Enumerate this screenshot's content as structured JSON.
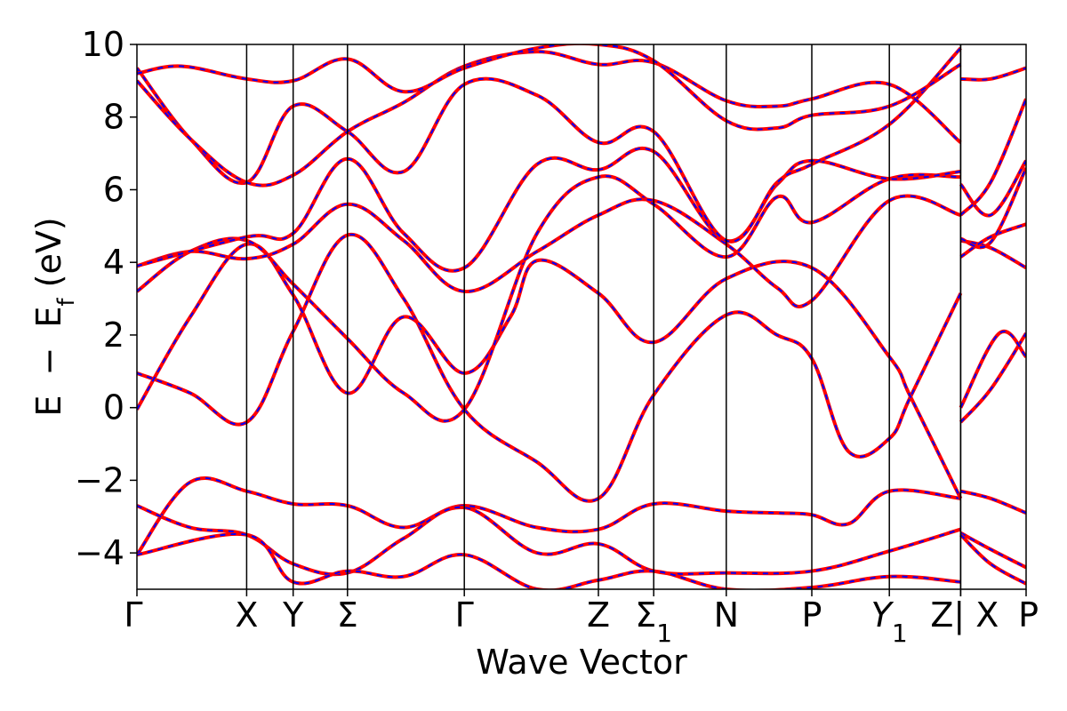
{
  "chart_data": {
    "type": "line",
    "title": "",
    "xlabel": "Wave Vector",
    "ylabel_parts": {
      "e": "E",
      "minus": "−",
      "ef": "E",
      "ef_sub": "f",
      "unit": " (eV)"
    },
    "ylim": [
      -5,
      10
    ],
    "y_ticks": [
      10,
      8,
      6,
      4,
      2,
      0,
      -2,
      -4
    ],
    "y_tick_labels": [
      "10",
      "8",
      "6",
      "4",
      "2",
      "0",
      "−2",
      "−4"
    ],
    "xlim": [
      0,
      1
    ],
    "high_symmetry_points": [
      {
        "label": "Γ",
        "sub": "",
        "x": 0.0
      },
      {
        "label": "X",
        "sub": "",
        "x": 0.1234
      },
      {
        "label": "Y",
        "sub": "",
        "x": 0.1757
      },
      {
        "label": "Σ",
        "sub": "",
        "x": 0.2368
      },
      {
        "label": "Γ",
        "sub": "",
        "x": 0.3682
      },
      {
        "label": "Z",
        "sub": "",
        "x": 0.519
      },
      {
        "label": "Σ",
        "sub": "1",
        "x": 0.5812
      },
      {
        "label": "N",
        "sub": "",
        "x": 0.6628
      },
      {
        "label": "P",
        "sub": "",
        "x": 0.759
      },
      {
        "label": "Y",
        "sub": "1",
        "x": 0.8462
      },
      {
        "label": "Z",
        "sub": "",
        "x": 0.9264
      },
      {
        "label": "| X",
        "sub": "",
        "x": 0.9264
      },
      {
        "label": "P",
        "sub": "",
        "x": 1.0
      }
    ],
    "series_style": {
      "dft_color": "#ff0000",
      "wannier_color": "#0000ff",
      "dft_dash": "solid",
      "wannier_dash": "dashed"
    },
    "bands": [
      {
        "x": [
          0.0,
          0.06,
          0.1234,
          0.1757,
          0.2368,
          0.3,
          0.3682,
          0.45,
          0.519,
          0.5812,
          0.6628,
          0.72,
          0.759,
          0.8,
          0.8462,
          0.9264
        ],
        "y": [
          -4.05,
          -2.05,
          -2.3,
          -2.65,
          -2.7,
          -3.3,
          -2.7,
          -3.3,
          -3.35,
          -2.65,
          -2.85,
          -2.9,
          -2.95,
          -3.2,
          -2.3,
          -2.5
        ]
      },
      {
        "x": [
          0.0,
          0.06,
          0.1234,
          0.1757,
          0.2368,
          0.3,
          0.3682,
          0.45,
          0.519,
          0.5812,
          0.6628,
          0.759,
          0.8462,
          0.9264
        ],
        "y": [
          -2.7,
          -3.3,
          -3.5,
          -4.3,
          -4.55,
          -3.6,
          -2.75,
          -4.0,
          -3.75,
          -4.5,
          -4.55,
          -4.5,
          -3.95,
          -3.35
        ]
      },
      {
        "x": [
          0.0,
          0.1234,
          0.1757,
          0.2368,
          0.3,
          0.3682,
          0.45,
          0.519,
          0.5812,
          0.6628,
          0.759,
          0.8462,
          0.9264
        ],
        "y": [
          -4.05,
          -3.5,
          -4.8,
          -4.5,
          -4.65,
          -4.05,
          -5.0,
          -4.75,
          -4.5,
          -5.0,
          -4.95,
          -4.65,
          -4.8
        ]
      },
      {
        "x": [
          0.0,
          0.06,
          0.1234,
          0.1757,
          0.2368,
          0.3,
          0.3682,
          0.45,
          0.519,
          0.5812,
          0.6628,
          0.72,
          0.759,
          0.8,
          0.8462,
          0.87,
          0.9264
        ],
        "y": [
          0.95,
          0.4,
          -0.4,
          2.1,
          4.75,
          3.0,
          -0.05,
          -1.5,
          -2.5,
          0.35,
          2.55,
          2.0,
          1.35,
          -1.2,
          -0.85,
          0.3,
          3.15
        ]
      },
      {
        "x": [
          0.0,
          0.06,
          0.1234,
          0.1757,
          0.2368,
          0.3,
          0.3682,
          0.42,
          0.45,
          0.519,
          0.5812,
          0.6628,
          0.759,
          0.8462,
          0.87,
          0.9264
        ],
        "y": [
          -0.05,
          2.5,
          4.5,
          3.1,
          0.4,
          2.5,
          0.95,
          2.5,
          4.05,
          3.15,
          1.8,
          3.55,
          3.85,
          1.4,
          0.3,
          -2.5
        ]
      },
      {
        "x": [
          0.0,
          0.06,
          0.1234,
          0.1757,
          0.2368,
          0.3,
          0.3682,
          0.45,
          0.519,
          0.5812,
          0.6628,
          0.72,
          0.759,
          0.8462,
          0.9264
        ],
        "y": [
          3.2,
          4.3,
          4.6,
          3.4,
          1.9,
          0.4,
          -0.05,
          4.8,
          6.35,
          5.6,
          4.15,
          5.8,
          5.1,
          6.3,
          6.35
        ]
      },
      {
        "x": [
          0.0,
          0.06,
          0.1234,
          0.1757,
          0.2368,
          0.3,
          0.3682,
          0.45,
          0.519,
          0.5812,
          0.6628,
          0.72,
          0.759,
          0.8462,
          0.9264
        ],
        "y": [
          3.9,
          4.3,
          4.1,
          4.5,
          5.6,
          4.6,
          3.2,
          4.3,
          5.3,
          5.7,
          4.5,
          3.3,
          2.95,
          5.7,
          5.3
        ]
      },
      {
        "x": [
          0.0,
          0.1234,
          0.1757,
          0.2368,
          0.3,
          0.3682,
          0.45,
          0.519,
          0.5812,
          0.6628,
          0.72,
          0.759,
          0.8462,
          0.9264
        ],
        "y": [
          3.9,
          4.7,
          4.8,
          6.85,
          4.8,
          3.85,
          6.7,
          6.55,
          7.05,
          4.6,
          6.15,
          6.8,
          6.3,
          6.5
        ]
      },
      {
        "x": [
          0.0,
          0.06,
          0.1234,
          0.1757,
          0.2368,
          0.3,
          0.3682,
          0.45,
          0.519,
          0.5812,
          0.6628,
          0.72,
          0.759,
          0.8462,
          0.9264
        ],
        "y": [
          9.35,
          7.4,
          6.2,
          8.3,
          7.6,
          6.5,
          8.9,
          8.6,
          7.3,
          7.6,
          4.6,
          6.2,
          6.7,
          7.8,
          9.9
        ]
      },
      {
        "x": [
          0.0,
          0.06,
          0.1234,
          0.1757,
          0.2368,
          0.3,
          0.3682,
          0.45,
          0.519,
          0.5812,
          0.6628,
          0.72,
          0.759,
          0.8462,
          0.9264
        ],
        "y": [
          9.0,
          7.4,
          6.2,
          6.4,
          7.6,
          8.4,
          9.4,
          9.8,
          9.45,
          9.5,
          8.45,
          8.3,
          8.5,
          8.9,
          7.3
        ]
      },
      {
        "x": [
          0.0,
          0.05,
          0.1234,
          0.1757,
          0.2368,
          0.3,
          0.3682,
          0.45,
          0.519,
          0.5812,
          0.6628,
          0.72,
          0.759,
          0.8462,
          0.9264
        ],
        "y": [
          9.2,
          9.4,
          9.05,
          9.0,
          9.6,
          8.7,
          9.35,
          9.9,
          10.0,
          9.55,
          7.9,
          7.7,
          8.05,
          8.3,
          9.45
        ]
      }
    ],
    "right_bands": [
      {
        "x": [
          0.9264,
          0.96,
          1.0
        ],
        "y": [
          9.05,
          9.05,
          9.35
        ]
      },
      {
        "x": [
          0.9264,
          0.96,
          1.0
        ],
        "y": [
          6.15,
          5.3,
          6.8
        ]
      },
      {
        "x": [
          0.9264,
          0.96,
          1.0
        ],
        "y": [
          5.3,
          6.2,
          8.5
        ]
      },
      {
        "x": [
          0.9264,
          0.96,
          1.0
        ],
        "y": [
          4.6,
          4.4,
          3.85
        ]
      },
      {
        "x": [
          0.9264,
          0.96,
          1.0
        ],
        "y": [
          4.15,
          4.7,
          5.05
        ]
      },
      {
        "x": [
          0.9264,
          0.96,
          1.0
        ],
        "y": [
          4.65,
          4.55,
          6.6
        ]
      },
      {
        "x": [
          0.9264,
          0.96,
          1.0
        ],
        "y": [
          -0.4,
          0.5,
          2.05
        ]
      },
      {
        "x": [
          0.9264,
          0.97,
          1.0
        ],
        "y": [
          0.0,
          2.05,
          1.4
        ]
      },
      {
        "x": [
          0.9264,
          0.96,
          1.0
        ],
        "y": [
          -2.3,
          -2.5,
          -2.9
        ]
      },
      {
        "x": [
          0.9264,
          0.96,
          1.0
        ],
        "y": [
          -3.45,
          -3.9,
          -4.4
        ]
      },
      {
        "x": [
          0.9264,
          0.96,
          1.0
        ],
        "y": [
          -3.5,
          -4.3,
          -4.85
        ]
      }
    ]
  }
}
